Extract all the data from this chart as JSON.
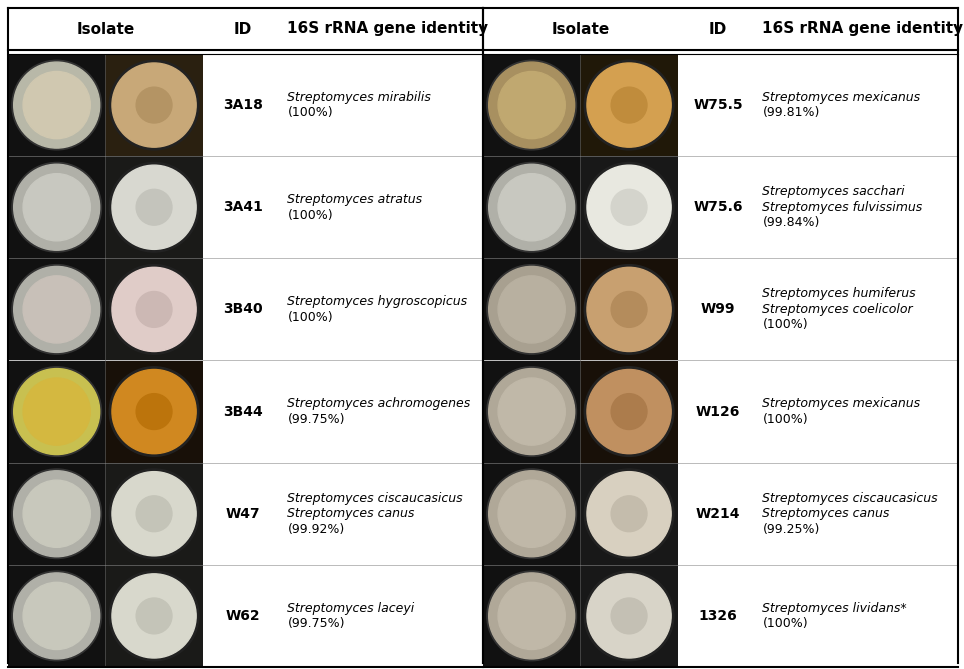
{
  "background_color": "#ffffff",
  "header_text_color": "#000000",
  "header_fontsize": 11,
  "id_fontsize": 10,
  "species_fontsize": 9,
  "img_bg_color": "#111111",
  "left_panel": {
    "header_isolate": "Isolate",
    "header_id": "ID",
    "header_gene": "16S rRNA gene identity",
    "rows": [
      {
        "id": "3A18",
        "species_lines": [
          "Streptomyces mirabilis"
        ],
        "percent": "(100%)"
      },
      {
        "id": "3A41",
        "species_lines": [
          "Streptomyces atratus"
        ],
        "percent": "(100%)"
      },
      {
        "id": "3B40",
        "species_lines": [
          "Streptomyces hygroscopicus"
        ],
        "percent": "(100%)"
      },
      {
        "id": "3B44",
        "species_lines": [
          "Streptomyces achromogenes"
        ],
        "percent": "(99.75%)"
      },
      {
        "id": "W47",
        "species_lines": [
          "Streptomyces ciscaucasicus",
          "Streptomyces canus"
        ],
        "percent": "(99.92%)"
      },
      {
        "id": "W62",
        "species_lines": [
          "Streptomyces laceyi"
        ],
        "percent": "(99.75%)"
      }
    ],
    "plate_colors": [
      {
        "bg1": "#b8b8a8",
        "colony1": "#d0c8b0",
        "bg2": "#2a2010",
        "colony2": "#c8a878"
      },
      {
        "bg1": "#b0b0a8",
        "colony1": "#c8c8c0",
        "bg2": "#1a1a18",
        "colony2": "#d8d8d0"
      },
      {
        "bg1": "#b0b0a8",
        "colony1": "#c8c0b8",
        "bg2": "#1a1a18",
        "colony2": "#e0ccc8"
      },
      {
        "bg1": "#c8c050",
        "colony1": "#d4b840",
        "bg2": "#181008",
        "colony2": "#d08820"
      },
      {
        "bg1": "#b0b0a8",
        "colony1": "#c8c8bc",
        "bg2": "#1a1a18",
        "colony2": "#d8d8cc"
      },
      {
        "bg1": "#b0b0a8",
        "colony1": "#c8c8bc",
        "bg2": "#1a1a18",
        "colony2": "#d8d8cc"
      }
    ]
  },
  "right_panel": {
    "header_isolate": "Isolate",
    "header_id": "ID",
    "header_gene": "16S rRNA gene identity",
    "rows": [
      {
        "id": "W75.5",
        "species_lines": [
          "Streptomyces mexicanus"
        ],
        "percent": "(99.81%)"
      },
      {
        "id": "W75.6",
        "species_lines": [
          "Streptomyces sacchari",
          "Streptomyces fulvissimus"
        ],
        "percent": "(99.84%)"
      },
      {
        "id": "W99",
        "species_lines": [
          "Streptomyces humiferus",
          "Streptomyces coelicolor"
        ],
        "percent": "(100%)"
      },
      {
        "id": "W126",
        "species_lines": [
          "Streptomyces mexicanus"
        ],
        "percent": "(100%)"
      },
      {
        "id": "W214",
        "species_lines": [
          "Streptomyces ciscaucasicus",
          "Streptomyces canus"
        ],
        "percent": "(99.25%)"
      },
      {
        "id": "1326",
        "species_lines": [
          "Streptomyces lividans*"
        ],
        "percent": "(100%)"
      }
    ],
    "plate_colors": [
      {
        "bg1": "#a89060",
        "colony1": "#c0a870",
        "bg2": "#201808",
        "colony2": "#d4a050"
      },
      {
        "bg1": "#b0b0a8",
        "colony1": "#c8c8c0",
        "bg2": "#181818",
        "colony2": "#e8e8e0"
      },
      {
        "bg1": "#a8a090",
        "colony1": "#b8b0a0",
        "bg2": "#181008",
        "colony2": "#c8a070"
      },
      {
        "bg1": "#b0a898",
        "colony1": "#c0b8a8",
        "bg2": "#181008",
        "colony2": "#c09060"
      },
      {
        "bg1": "#b0a898",
        "colony1": "#c0b8a8",
        "bg2": "#181818",
        "colony2": "#d8d0c0"
      },
      {
        "bg1": "#b0a898",
        "colony1": "#c0b8a8",
        "bg2": "#181818",
        "colony2": "#d8d4c8"
      }
    ]
  }
}
